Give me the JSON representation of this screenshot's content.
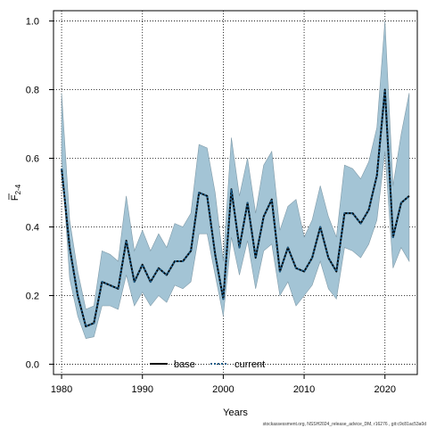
{
  "chart_data": {
    "type": "line",
    "title": "",
    "xlabel": "Years",
    "ylabel_main": "F",
    "ylabel_sub": "2-4",
    "xlim": [
      1979,
      2024
    ],
    "ylim": [
      -0.03,
      1.03
    ],
    "xticks": [
      1980,
      1990,
      2000,
      2010,
      2020
    ],
    "yticks": [
      0.0,
      0.2,
      0.4,
      0.6,
      0.8,
      1.0
    ],
    "ytick_labels": [
      "0.0",
      "0.2",
      "0.4",
      "0.6",
      "0.8",
      "1.0"
    ],
    "grid": true,
    "legend_position": "bottom-center",
    "x": [
      1980,
      1981,
      1982,
      1983,
      1984,
      1985,
      1986,
      1987,
      1988,
      1989,
      1990,
      1991,
      1992,
      1993,
      1994,
      1995,
      1996,
      1997,
      1998,
      1999,
      2000,
      2001,
      2002,
      2003,
      2004,
      2005,
      2006,
      2007,
      2008,
      2009,
      2010,
      2011,
      2012,
      2013,
      2014,
      2015,
      2016,
      2017,
      2018,
      2019,
      2020,
      2021,
      2022,
      2023
    ],
    "series": [
      {
        "name": "base",
        "style": "solid",
        "color": "#000000",
        "values": [
          0.57,
          0.34,
          0.2,
          0.11,
          0.12,
          0.24,
          0.23,
          0.22,
          0.36,
          0.24,
          0.29,
          0.24,
          0.28,
          0.26,
          0.3,
          0.3,
          0.33,
          0.5,
          0.49,
          0.32,
          0.19,
          0.51,
          0.34,
          0.47,
          0.31,
          0.43,
          0.48,
          0.27,
          0.34,
          0.28,
          0.27,
          0.31,
          0.4,
          0.31,
          0.27,
          0.44,
          0.44,
          0.41,
          0.45,
          0.55,
          0.8,
          0.37,
          0.47,
          0.49
        ]
      },
      {
        "name": "current",
        "style": "dotted",
        "color": "#1f5f8b",
        "values": [
          0.57,
          0.34,
          0.2,
          0.11,
          0.12,
          0.24,
          0.23,
          0.22,
          0.36,
          0.24,
          0.29,
          0.24,
          0.28,
          0.26,
          0.3,
          0.3,
          0.33,
          0.5,
          0.49,
          0.32,
          0.19,
          0.51,
          0.34,
          0.47,
          0.31,
          0.43,
          0.48,
          0.27,
          0.34,
          0.28,
          0.27,
          0.31,
          0.4,
          0.31,
          0.27,
          0.44,
          0.44,
          0.41,
          0.45,
          0.55,
          0.8,
          0.37,
          0.47,
          0.49
        ]
      }
    ],
    "band": {
      "color": "#a3c4d5",
      "upper": [
        0.79,
        0.42,
        0.27,
        0.16,
        0.17,
        0.33,
        0.32,
        0.3,
        0.49,
        0.33,
        0.39,
        0.33,
        0.38,
        0.34,
        0.41,
        0.4,
        0.44,
        0.64,
        0.63,
        0.5,
        0.3,
        0.66,
        0.49,
        0.6,
        0.44,
        0.58,
        0.62,
        0.39,
        0.46,
        0.48,
        0.37,
        0.42,
        0.52,
        0.43,
        0.37,
        0.58,
        0.57,
        0.54,
        0.59,
        0.69,
        1.0,
        0.52,
        0.67,
        0.79
      ],
      "lower": [
        0.6,
        0.25,
        0.14,
        0.075,
        0.08,
        0.17,
        0.17,
        0.16,
        0.26,
        0.17,
        0.21,
        0.17,
        0.2,
        0.18,
        0.23,
        0.22,
        0.24,
        0.38,
        0.38,
        0.26,
        0.14,
        0.37,
        0.26,
        0.36,
        0.22,
        0.33,
        0.35,
        0.2,
        0.24,
        0.17,
        0.2,
        0.23,
        0.3,
        0.22,
        0.19,
        0.34,
        0.33,
        0.31,
        0.35,
        0.42,
        0.62,
        0.28,
        0.34,
        0.3
      ]
    }
  },
  "footer": "stockassessment.org, NSSH2024_release_advice_DM, r16276 , git:c9c81ac53a0d"
}
